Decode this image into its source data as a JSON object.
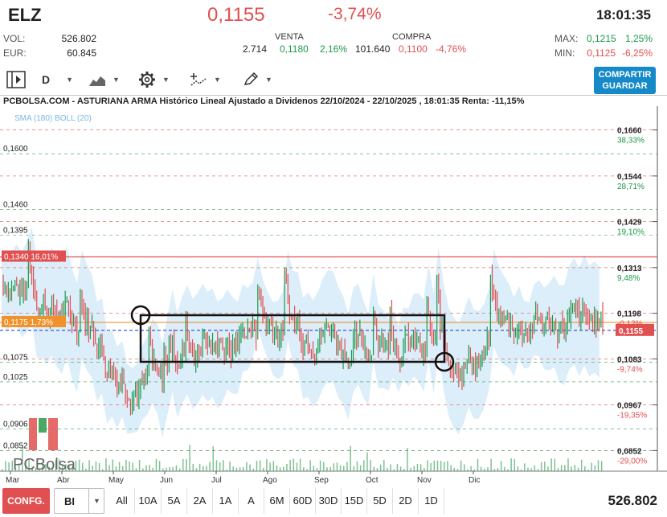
{
  "header": {
    "ticker": "ELZ",
    "price": "0,1155",
    "change": "-3,74%",
    "time": "18:01:35",
    "vol_label": "VOL:",
    "vol_value": "526.802",
    "eur_label": "EUR:",
    "eur_value": "60.845",
    "venta_label": "VENTA",
    "compra_label": "COMPRA",
    "venta_qty": "2.714",
    "venta_price": "0,1180",
    "venta_pct": "2,16%",
    "compra_qty": "101.640",
    "compra_price": "0,1100",
    "compra_pct": "-4,76%",
    "max_label": "MAX:",
    "max_value": "0,1215",
    "max_pct": "1,25%",
    "min_label": "MIN:",
    "min_value": "0,1125",
    "min_pct": "-6,25%"
  },
  "toolbar": {
    "period": "D",
    "share_line1": "COMPARTIR",
    "share_line2": "GUARDAR",
    "icons": [
      "panel-toggle-icon",
      "area-chart-icon",
      "gear-icon",
      "indicators-icon",
      "draw-pencil-icon"
    ]
  },
  "chart_data": {
    "type": "line",
    "title": "PCBOLSA.COM - ASTURIANA ARMA Histórico Lineal Ajustado a Dividenos 22/10/2024 - 22/10/2025 , 18:01:35 Renta: -11,15%",
    "legend": "SMA (180)  BOLL (20)",
    "watermark": "PCBolsa",
    "x_ticks": [
      "Mar",
      "Abr",
      "May",
      "Jun",
      "Jul",
      "Ago",
      "Sep",
      "Oct",
      "Nov",
      "Dic"
    ],
    "right_axis": [
      {
        "price": "0,1660",
        "pct": "38,33%"
      },
      {
        "price": "0,1544",
        "pct": "28,71%"
      },
      {
        "price": "0,1429",
        "pct": "19,10%"
      },
      {
        "price": "0,1313",
        "pct": "9,48%"
      },
      {
        "price": "0,1198",
        "pct": "-0,12%"
      },
      {
        "price": "0,1083",
        "pct": "-9,74%"
      },
      {
        "price": "0,0967",
        "pct": "-19,35%"
      },
      {
        "price": "0,0852",
        "pct": "-29,00%"
      }
    ],
    "current_price_tag": "0,1155",
    "left_levels": [
      "0,1600",
      "0,1460",
      "0,1395",
      "0,1075",
      "0,1025",
      "0,0906",
      "0,0852"
    ],
    "highlight_levels": [
      {
        "label": "0,1340  16,01%",
        "color": "#e05050"
      },
      {
        "label": "0,1175  1,73%",
        "color": "#f0922b"
      }
    ],
    "ylim": [
      0.08,
      0.172
    ],
    "colors": {
      "up": "#1a9a4a",
      "down": "#e05050",
      "band": "#cfe8f8",
      "current": "#1f2fb0"
    }
  },
  "bottombar": {
    "config": "CONFG.",
    "chart_type": "BI",
    "ranges": [
      "All",
      "10A",
      "5A",
      "2A",
      "1A",
      "A",
      "6M",
      "60D",
      "30D",
      "15D",
      "5D",
      "2D",
      "1D"
    ],
    "volume_total": "526.802"
  }
}
